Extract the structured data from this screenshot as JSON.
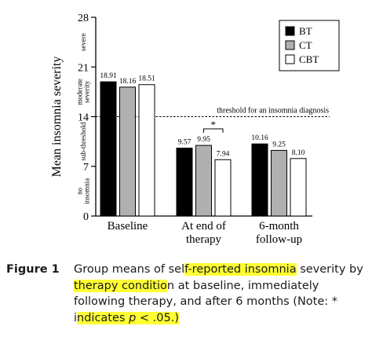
{
  "chart_data": {
    "type": "bar",
    "ylabel": "Mean insomnia severity",
    "ylim": [
      0,
      28
    ],
    "yticks": [
      0,
      7,
      14,
      21,
      28
    ],
    "severity_bands": [
      {
        "label": "no insomnia",
        "from": 0,
        "to": 7
      },
      {
        "label": "sub-threshold",
        "from": 7,
        "to": 14
      },
      {
        "label": "moderate severity",
        "from": 14,
        "to": 21
      },
      {
        "label": "severe",
        "from": 21,
        "to": 28
      }
    ],
    "categories": [
      "Baseline",
      "At end of therapy",
      "6-month follow-up"
    ],
    "category_lines": [
      [
        "Baseline"
      ],
      [
        "At end of",
        "therapy"
      ],
      [
        "6-month",
        "follow-up"
      ]
    ],
    "series": [
      {
        "name": "BT",
        "color": "#000000",
        "values": [
          18.91,
          9.57,
          10.16
        ]
      },
      {
        "name": "CT",
        "color": "#b0b0b0",
        "values": [
          18.16,
          9.95,
          9.25
        ]
      },
      {
        "name": "CBT",
        "color": "#ffffff",
        "values": [
          18.51,
          7.94,
          8.1
        ]
      }
    ],
    "value_labels": [
      [
        "18.91",
        "9.57",
        "10.16"
      ],
      [
        "18.16",
        "9.95",
        "9.25"
      ],
      [
        "18.51",
        "7.94",
        "8.10"
      ]
    ],
    "threshold": {
      "value": 14,
      "label": "threshold for an insomnia diagnosis"
    },
    "significance": {
      "category": 1,
      "between": [
        "CT",
        "CBT"
      ],
      "marker": "*"
    },
    "legend_position": "top-right",
    "grid": false
  },
  "caption": {
    "label": "Figure 1",
    "t1": "Group means of sel",
    "h1": "f-reported insomnia",
    "t2": "severity by ",
    "h2": "therapy conditio",
    "t3": "n at baseline, immediately following therapy, and after 6 months (Note: * i",
    "h3a": "ndicates ",
    "h3p": "p",
    "h3b": " < .05.)"
  }
}
